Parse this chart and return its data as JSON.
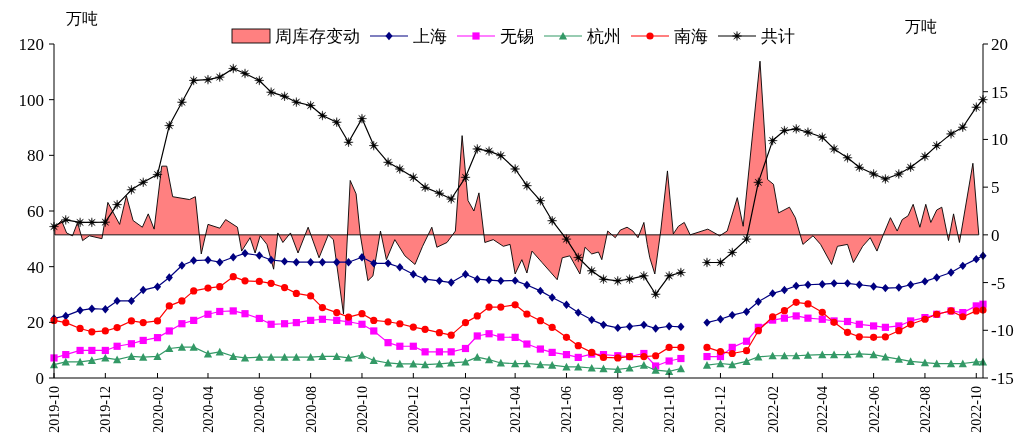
{
  "chart_data": {
    "type": "line",
    "ylabel": "万吨",
    "y2label": "万吨",
    "legend": "top",
    "grid": false,
    "xlim": [
      "2019-10-01",
      "2022-10-09"
    ],
    "ylim": [
      0,
      120
    ],
    "yticks": [
      0,
      20,
      40,
      60,
      80,
      100,
      120
    ],
    "y2lim": [
      -15,
      20
    ],
    "y2ticks": [
      -15,
      -10,
      -5,
      0,
      5,
      10,
      15,
      20
    ],
    "xticks": [
      {
        "value": "2019-10-01",
        "label": "2019-10"
      },
      {
        "value": "2019-12-01",
        "label": "2019-12"
      },
      {
        "value": "2020-02-01",
        "label": "2020-02"
      },
      {
        "value": "2020-04-01",
        "label": "2020-04"
      },
      {
        "value": "2020-06-01",
        "label": "2020-06"
      },
      {
        "value": "2020-08-01",
        "label": "2020-08"
      },
      {
        "value": "2020-10-01",
        "label": "2020-10"
      },
      {
        "value": "2020-12-01",
        "label": "2020-12"
      },
      {
        "value": "2021-02-01",
        "label": "2021-02"
      },
      {
        "value": "2021-04-01",
        "label": "2021-04"
      },
      {
        "value": "2021-06-01",
        "label": "2021-06"
      },
      {
        "value": "2021-08-01",
        "label": "2021-08"
      },
      {
        "value": "2021-10-01",
        "label": "2021-10"
      },
      {
        "value": "2021-12-01",
        "label": "2021-12"
      },
      {
        "value": "2022-02-01",
        "label": "2022-02"
      },
      {
        "value": "2022-04-01",
        "label": "2022-04"
      },
      {
        "value": "2022-06-01",
        "label": "2022-06"
      },
      {
        "value": "2022-08-01",
        "label": "2022-08"
      },
      {
        "value": "2022-10-01",
        "label": "2022-10"
      }
    ],
    "x": [
      "2019-10-01",
      "2019-10-15",
      "2019-11-01",
      "2019-11-15",
      "2019-12-01",
      "2019-12-15",
      "2020-01-01",
      "2020-01-15",
      "2020-02-01",
      "2020-02-15",
      "2020-03-01",
      "2020-03-15",
      "2020-04-01",
      "2020-04-15",
      "2020-05-01",
      "2020-05-15",
      "2020-06-01",
      "2020-06-15",
      "2020-07-01",
      "2020-07-15",
      "2020-08-01",
      "2020-08-15",
      "2020-09-01",
      "2020-09-15",
      "2020-10-01",
      "2020-10-15",
      "2020-11-01",
      "2020-11-15",
      "2020-12-01",
      "2020-12-15",
      "2021-01-01",
      "2021-01-15",
      "2021-02-01",
      "2021-02-15",
      "2021-03-01",
      "2021-03-15",
      "2021-04-01",
      "2021-04-15",
      "2021-05-01",
      "2021-05-15",
      "2021-06-01",
      "2021-06-15",
      "2021-07-01",
      "2021-07-15",
      "2021-08-01",
      "2021-08-15",
      "2021-09-01",
      "2021-09-15",
      "2021-10-01",
      "2021-10-15",
      "2021-11-01",
      "2021-11-15",
      "2021-12-01",
      "2021-12-15",
      "2022-01-01",
      "2022-01-15",
      "2022-02-01",
      "2022-02-15",
      "2022-03-01",
      "2022-03-15",
      "2022-04-01",
      "2022-04-15",
      "2022-05-01",
      "2022-05-15",
      "2022-06-01",
      "2022-06-15",
      "2022-07-01",
      "2022-07-15",
      "2022-08-01",
      "2022-08-15",
      "2022-09-01",
      "2022-09-15",
      "2022-10-01",
      "2022-10-09"
    ],
    "series": [
      {
        "name": "周库存变动",
        "type": "area",
        "axis": "y2",
        "color": "#ff8080",
        "x": [
          "2019-10-02",
          "2019-10-10",
          "2019-10-16",
          "2019-10-23",
          "2019-10-29",
          "2019-11-04",
          "2019-11-12",
          "2019-11-27",
          "2019-12-04",
          "2019-12-18",
          "2019-12-26",
          "2020-01-03",
          "2020-01-14",
          "2020-01-21",
          "2020-01-28",
          "2020-02-06",
          "2020-02-12",
          "2020-02-19",
          "2020-03-10",
          "2020-03-17",
          "2020-03-24",
          "2020-04-01",
          "2020-04-15",
          "2020-04-22",
          "2020-05-06",
          "2020-05-11",
          "2020-05-21",
          "2020-05-27",
          "2020-06-02",
          "2020-06-10",
          "2020-06-18",
          "2020-06-23",
          "2020-06-29",
          "2020-07-08",
          "2020-07-17",
          "2020-07-29",
          "2020-08-11",
          "2020-08-22",
          "2020-08-28",
          "2020-09-09",
          "2020-09-17",
          "2020-09-24",
          "2020-09-29",
          "2020-10-08",
          "2020-10-14",
          "2020-10-23",
          "2020-10-30",
          "2020-11-09",
          "2020-11-21",
          "2020-12-03",
          "2020-12-12",
          "2020-12-23",
          "2020-12-29",
          "2021-01-10",
          "2021-01-20",
          "2021-01-28",
          "2021-02-04",
          "2021-02-11",
          "2021-02-17",
          "2021-02-24",
          "2021-03-06",
          "2021-03-18",
          "2021-03-26",
          "2021-04-01",
          "2021-04-09",
          "2021-04-15",
          "2021-04-21",
          "2021-05-03",
          "2021-05-12",
          "2021-05-21",
          "2021-05-27",
          "2021-06-05",
          "2021-06-17",
          "2021-06-23",
          "2021-07-01",
          "2021-07-09",
          "2021-07-13",
          "2021-07-20",
          "2021-07-29",
          "2021-08-04",
          "2021-08-12",
          "2021-08-19",
          "2021-08-25",
          "2021-09-01",
          "2021-09-05",
          "2021-09-08",
          "2021-09-14",
          "2021-09-21",
          "2021-09-29",
          "2021-10-06",
          "2021-10-12",
          "2021-10-19",
          "2021-10-26",
          "2021-11-16",
          "2021-11-30",
          "2021-12-09",
          "2021-12-21",
          "2021-12-28",
          "2022-01-17",
          "2022-01-26",
          "2022-02-02",
          "2022-02-08",
          "2022-02-21",
          "2022-02-28",
          "2022-03-09",
          "2022-03-21",
          "2022-03-30",
          "2022-04-12",
          "2022-04-19",
          "2022-05-01",
          "2022-05-08",
          "2022-05-19",
          "2022-05-28",
          "2022-06-05",
          "2022-06-12",
          "2022-06-21",
          "2022-06-29",
          "2022-07-05",
          "2022-07-12",
          "2022-07-18",
          "2022-07-26",
          "2022-08-02",
          "2022-08-08",
          "2022-08-15",
          "2022-08-21",
          "2022-08-29",
          "2022-09-04",
          "2022-09-11",
          "2022-09-27",
          "2022-10-04"
        ],
        "values": [
          0.8,
          1.5,
          0.2,
          -0.1,
          1.3,
          -0.6,
          -0.1,
          -0.4,
          3.4,
          1.1,
          4.1,
          1.5,
          0.8,
          2.2,
          0.6,
          7.2,
          7.2,
          4,
          3.7,
          4,
          -2,
          1.1,
          0.7,
          1.6,
          0.8,
          -1.7,
          -0.3,
          -1.9,
          -0.1,
          -1,
          -3.6,
          0.2,
          -0.8,
          0.2,
          -1.9,
          0.8,
          -2.4,
          0,
          -0.5,
          -8.3,
          5.7,
          4.3,
          0,
          -4.8,
          -4.3,
          0.4,
          -2.6,
          -0.5,
          -2.2,
          -3.1,
          -1.2,
          0.8,
          -1.3,
          -0.8,
          0.4,
          10.4,
          3.6,
          2.5,
          4.4,
          -0.8,
          -0.5,
          -1.2,
          -1,
          -4.1,
          -2.6,
          -4,
          -1.7,
          -2.9,
          -3.8,
          -4.7,
          -2.4,
          -2.2,
          -4.1,
          -1.3,
          -2,
          -1.8,
          -2.6,
          0.4,
          -0.3,
          0.5,
          0.8,
          0.4,
          -0.3,
          1.3,
          -1,
          -2.4,
          -4.1,
          0.4,
          6.7,
          0.1,
          0.9,
          1.3,
          0,
          0.6,
          -0.1,
          0.4,
          3.9,
          0.9,
          18.2,
          5.8,
          5.3,
          2.3,
          2.9,
          1.8,
          -1,
          -0.1,
          -1,
          -3.1,
          -1.2,
          -1,
          -2.9,
          -1.2,
          -0.3,
          -1.7,
          -0.1,
          1.8,
          0.4,
          1.6,
          2,
          3.2,
          0.8,
          3.2,
          1.3,
          2.6,
          2.9,
          -0.6,
          2.2,
          -0.8,
          7.5,
          0
        ]
      },
      {
        "name": "上海",
        "marker": "diamond",
        "color": "#000080",
        "values": [
          21.4,
          22.3,
          24.3,
          24.9,
          24.7,
          27.7,
          27.7,
          31.6,
          32.8,
          36.1,
          40.4,
          42.2,
          42.4,
          41.6,
          43.4,
          44.8,
          44,
          42.4,
          41.9,
          41.6,
          41.6,
          41.6,
          41.6,
          41.6,
          43.4,
          41.2,
          41.2,
          39.8,
          37.3,
          35.5,
          34.9,
          34.3,
          37.3,
          35.5,
          35.2,
          34.9,
          35,
          33.4,
          31.3,
          28.9,
          26.3,
          23.5,
          20.9,
          19.1,
          18,
          18.5,
          19.1,
          17.8,
          18.6,
          18.4,
          null,
          19.9,
          21.1,
          22.6,
          23.8,
          27.4,
          30.4,
          31.6,
          33.1,
          33.5,
          33.7,
          34,
          34,
          33.5,
          32.9,
          32.3,
          32.5,
          33.5,
          34.7,
          36.1,
          37.9,
          40.3,
          42.7,
          43.9
        ]
      },
      {
        "name": "无锡",
        "marker": "square",
        "color": "#ff00ff",
        "values": [
          7.2,
          8.4,
          9.9,
          9.9,
          9.9,
          11.4,
          12.3,
          13.5,
          14.5,
          16.9,
          19.5,
          20.7,
          22.9,
          23.9,
          24.1,
          23.1,
          21.4,
          19.3,
          19.5,
          19.9,
          20.7,
          21.1,
          20.7,
          20.2,
          19.3,
          16.9,
          12.7,
          11.4,
          11.4,
          9.4,
          9.4,
          9.4,
          10.6,
          15.1,
          15.9,
          14.7,
          14.6,
          12.2,
          10.4,
          9.2,
          8.4,
          7.4,
          8.6,
          8.4,
          8,
          7.7,
          8.8,
          4.3,
          6.1,
          7,
          null,
          7.7,
          7.7,
          11,
          13.2,
          18.2,
          20.8,
          21.5,
          22.3,
          21.5,
          21.1,
          20.5,
          20.3,
          19.3,
          18.7,
          18.2,
          18.7,
          20.5,
          21.7,
          22.9,
          24.1,
          23.5,
          25.9,
          26.5
        ]
      },
      {
        "name": "杭州",
        "marker": "triangle",
        "color": "#339966",
        "values": [
          4.8,
          5.8,
          5.8,
          6.3,
          7.2,
          6.6,
          7.8,
          7.5,
          7.8,
          10.6,
          11.1,
          11.1,
          8.7,
          9.4,
          7.8,
          7.2,
          7.5,
          7.5,
          7.5,
          7.5,
          7.5,
          7.8,
          7.8,
          7.2,
          8.2,
          6.3,
          5.4,
          5.1,
          5.1,
          4.8,
          5.1,
          5.4,
          5.8,
          7.5,
          6.6,
          5.4,
          5.2,
          5.2,
          4.8,
          4.6,
          4,
          4,
          3.6,
          3.4,
          3.1,
          3.6,
          4.6,
          2.8,
          2.4,
          3.4,
          null,
          4.6,
          5.2,
          4.8,
          6,
          7.6,
          8,
          8,
          8,
          8.2,
          8.4,
          8.4,
          8.4,
          8.7,
          8.4,
          7.6,
          6.8,
          6,
          5.5,
          5.2,
          5.2,
          5.2,
          5.8,
          5.8
        ]
      },
      {
        "name": "南海",
        "marker": "circle",
        "color": "#ff0000",
        "values": [
          20.7,
          19.9,
          17.8,
          16.6,
          16.9,
          18.1,
          20.5,
          19.9,
          20.5,
          25.9,
          27.7,
          31.3,
          32.3,
          32.8,
          36.4,
          34.9,
          34.7,
          34,
          32.5,
          30.4,
          29.5,
          25.3,
          23.5,
          21.9,
          23.1,
          20.7,
          20.2,
          19.5,
          18.3,
          17.5,
          16.3,
          15.4,
          19.9,
          22.3,
          25.5,
          25.5,
          26.3,
          23,
          20.6,
          18.2,
          14.6,
          11.6,
          9.2,
          7.4,
          7.2,
          7.7,
          7.7,
          8,
          11,
          11,
          null,
          11,
          9.5,
          8.8,
          9.8,
          17,
          22,
          24.2,
          27.2,
          26.6,
          23.6,
          20,
          16.4,
          14.8,
          14.6,
          14.8,
          17,
          19.3,
          21.1,
          22.9,
          24.1,
          22,
          24.1,
          24.4
        ]
      },
      {
        "name": "共计",
        "marker": "star",
        "color": "#000000",
        "values": [
          54.4,
          56.8,
          55.9,
          55.9,
          56,
          62.3,
          67.6,
          70.3,
          73.1,
          90.7,
          99.1,
          106.9,
          107.2,
          108.1,
          111.2,
          109.4,
          106.9,
          102.7,
          101.2,
          99.1,
          97.9,
          94.3,
          91.9,
          84.7,
          93.2,
          83.5,
          77.5,
          75.1,
          72.1,
          68.5,
          66.4,
          64.3,
          72.1,
          82.3,
          81.5,
          79.9,
          75.1,
          69.1,
          63.7,
          56.5,
          49.9,
          43.3,
          38.5,
          35.5,
          34.9,
          35.5,
          36.7,
          30.1,
          36.7,
          37.9,
          null,
          41.5,
          41.5,
          45.1,
          49.9,
          70.3,
          85.3,
          88.9,
          89.5,
          88.3,
          86.5,
          82.3,
          79.1,
          75.7,
          73.3,
          71.5,
          73.3,
          75.7,
          79.6,
          83.5,
          87.7,
          90.1,
          97.3,
          100
        ]
      }
    ]
  }
}
